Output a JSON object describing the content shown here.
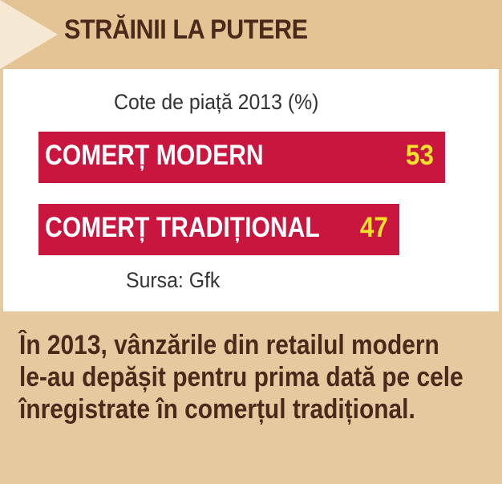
{
  "header": {
    "title": "STRĂINII LA PUTERE"
  },
  "chart_data": {
    "type": "bar",
    "title": "Cote de piață 2013 (%)",
    "categories": [
      "COMERȚ MODERN",
      "COMERȚ TRADIȚIONAL"
    ],
    "values": [
      53,
      47
    ],
    "colors": {
      "bar": "#c8163f",
      "label": "#ffffff",
      "value": "#f4e12a"
    },
    "source": "Sursa: Gfk"
  },
  "footnote": "În 2013, vânzările din retailul modern le-au depășit pentru prima dată pe cele înregistrate în comerțul tradițional."
}
